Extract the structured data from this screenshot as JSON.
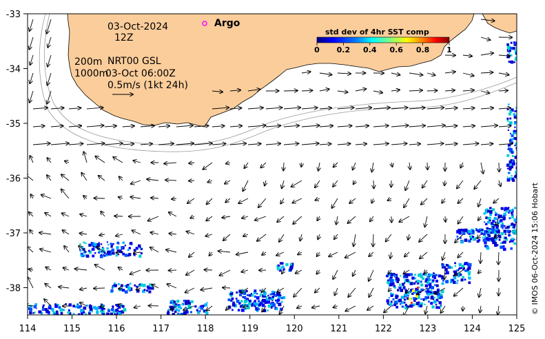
{
  "map": {
    "date": "03-Oct-2024",
    "hour": "12Z",
    "legend_argo": "Argo",
    "depth_line1": "200m",
    "depth_line2": "1000m",
    "product": "NRT00 GSL",
    "product_time": "03-Oct 06:00Z",
    "scale_label": "0.5m/s (1kt 24h)",
    "credit": "© IMOS 06-Oct-2024 15:06 Hobart"
  },
  "colorbar": {
    "title": "std dev of 4hr SST comp",
    "ticks": [
      "0",
      "0.2",
      "0.4",
      "0.6",
      "0.8",
      "1"
    ],
    "colors": [
      "#00007f",
      "#0000ff",
      "#007fff",
      "#00ffff",
      "#7fff7f",
      "#ffff00",
      "#ff7f00",
      "#ff0000",
      "#7f0000"
    ]
  },
  "axes": {
    "x_ticks": [
      "114",
      "115",
      "116",
      "117",
      "118",
      "119",
      "120",
      "121",
      "122",
      "123",
      "124",
      "125"
    ],
    "y_ticks": [
      "-33",
      "-34",
      "-35",
      "-36",
      "-37",
      "-38"
    ]
  },
  "colors": {
    "land": "#fbcd9b",
    "sst_low": "#0000cc",
    "sst_mid": "#00b5ff",
    "argo_marker": "#ff00ff"
  }
}
